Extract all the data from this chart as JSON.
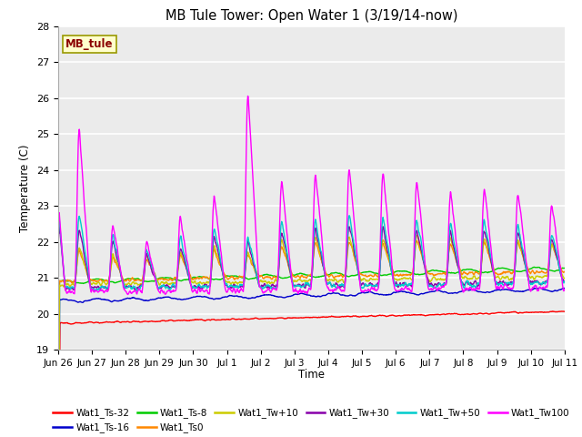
{
  "title": "MB Tule Tower: Open Water 1 (3/19/14-now)",
  "xlabel": "Time",
  "ylabel": "Temperature (C)",
  "ylim": [
    19.0,
    28.0
  ],
  "yticks": [
    19.0,
    20.0,
    21.0,
    22.0,
    23.0,
    24.0,
    25.0,
    26.0,
    27.0,
    28.0
  ],
  "xtick_labels": [
    "Jun 26",
    "Jun 27",
    "Jun 28",
    "Jun 29",
    "Jun 30",
    "Jul 1",
    "Jul 2",
    "Jul 3",
    "Jul 4",
    "Jul 5",
    "Jul 6",
    "Jul 7",
    "Jul 8",
    "Jul 9",
    "Jul 10",
    "Jul 11"
  ],
  "series": [
    {
      "name": "Wat1_Ts-32",
      "color": "#ff0000"
    },
    {
      "name": "Wat1_Ts-16",
      "color": "#0000cc"
    },
    {
      "name": "Wat1_Ts-8",
      "color": "#00cc00"
    },
    {
      "name": "Wat1_Ts0",
      "color": "#ff8800"
    },
    {
      "name": "Wat1_Tw+10",
      "color": "#cccc00"
    },
    {
      "name": "Wat1_Tw+30",
      "color": "#8800aa"
    },
    {
      "name": "Wat1_Tw+50",
      "color": "#00cccc"
    },
    {
      "name": "Wat1_Tw100",
      "color": "#ff00ff"
    }
  ],
  "mb_tule_label": "MB_tule",
  "plot_bg_color": "#ebebeb"
}
